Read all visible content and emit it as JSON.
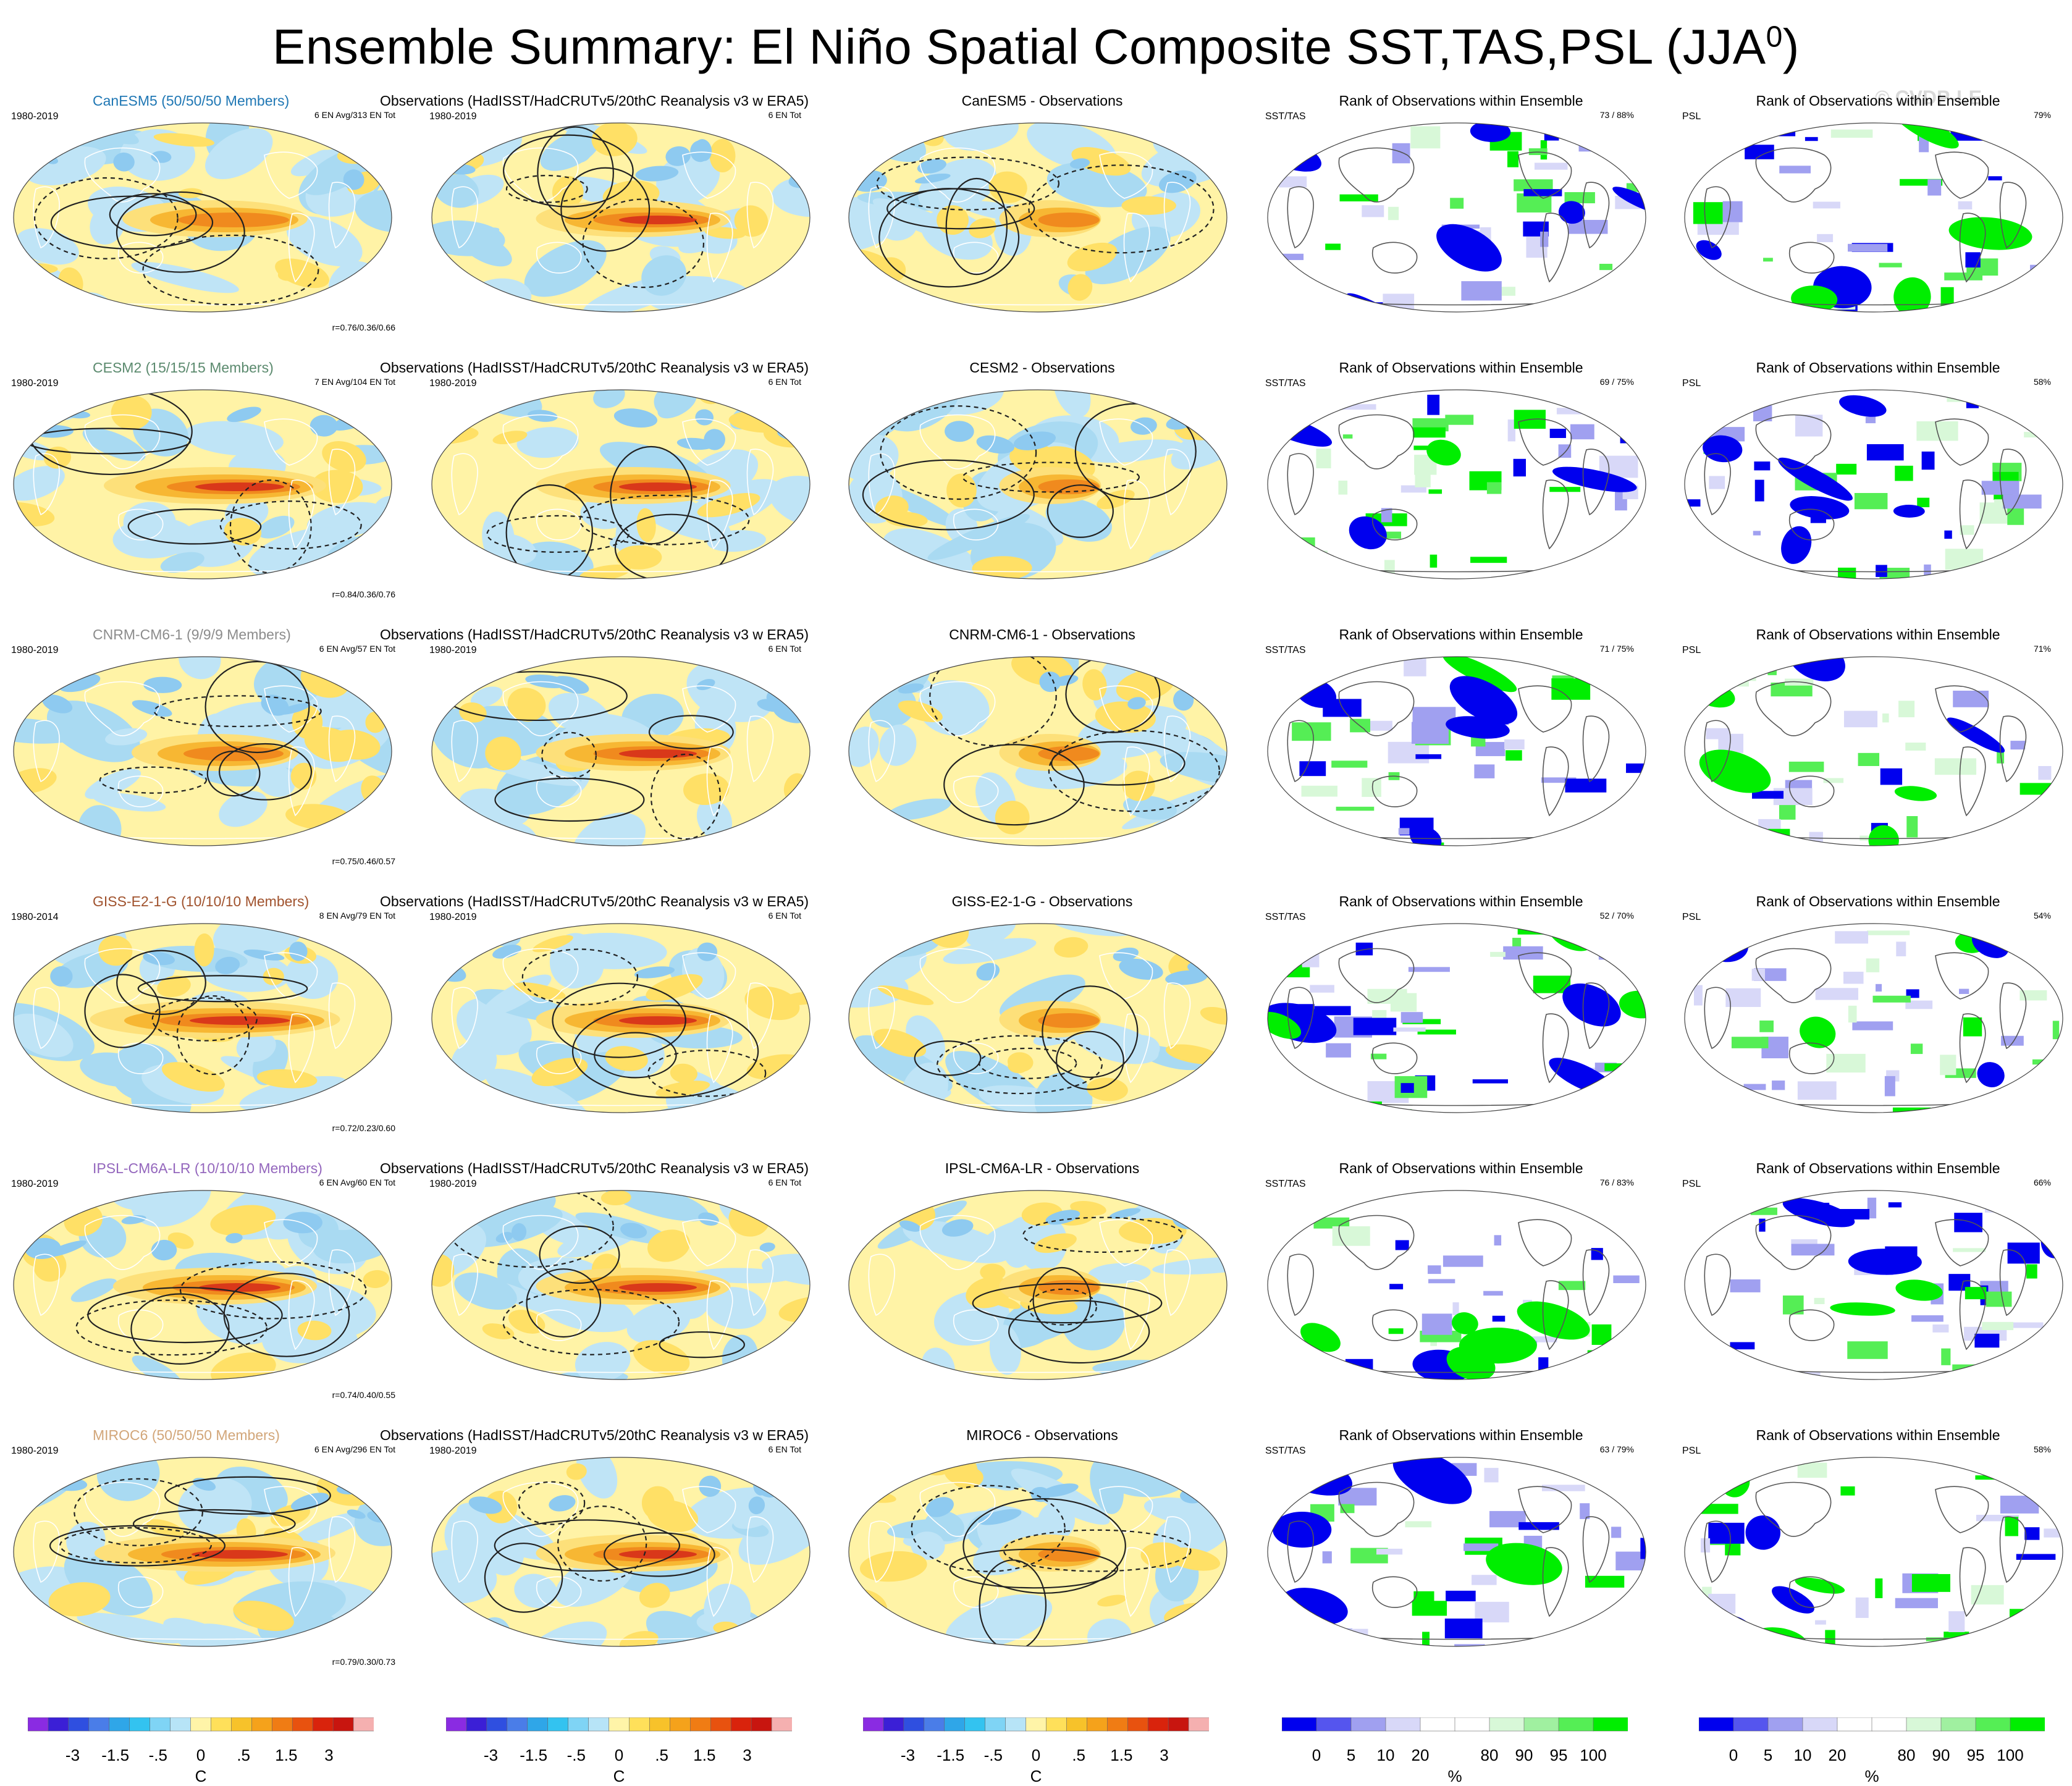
{
  "title": "Ensemble Summary: El Niño Spatial Composite SST,TAS,PSL (JJA",
  "title_sup": "0",
  "title_close": ")",
  "watermark": "© CVDP-LE",
  "obs_title": "Observations (HadISST/HadCRUTv5/20thC Reanalysis v3 w ERA5)",
  "rank_title": "Rank of Observations within Ensemble",
  "rank_left_label": "SST/TAS",
  "psl_label": "PSL",
  "obs_years": "1980-2019",
  "obs_count": "6 EN Tot",
  "rows": [
    {
      "model": "CanESM5",
      "members": "CanESM5 (50/50/50 Members)",
      "color": "#1f77b4",
      "years": "1980-2019",
      "ens": "6 EN Avg/313 EN Tot",
      "corr": "r=0.76/0.36/0.66",
      "diff": "CanESM5 - Observations",
      "rank_sst": "73 /  88%",
      "rank_psl": "79%"
    },
    {
      "model": "CESM2",
      "members": "CESM2 (15/15/15 Members)",
      "color": "#5b8a6e",
      "years": "1980-2019",
      "ens": "7 EN Avg/104 EN Tot",
      "corr": "r=0.84/0.36/0.76",
      "diff": "CESM2 - Observations",
      "rank_sst": "69 /  75%",
      "rank_psl": "58%"
    },
    {
      "model": "CNRM-CM6-1",
      "members": "CNRM-CM6-1 (9/9/9 Members)",
      "color": "#8c8c8c",
      "years": "1980-2019",
      "ens": "6 EN Avg/57 EN Tot",
      "corr": "r=0.75/0.46/0.57",
      "diff": "CNRM-CM6-1 - Observations",
      "rank_sst": "71 /  75%",
      "rank_psl": "71%"
    },
    {
      "model": "GISS-E2-1-G",
      "members": "GISS-E2-1-G (10/10/10 Members)",
      "color": "#a0522d",
      "years": "1980-2014",
      "ens": "8 EN Avg/79 EN Tot",
      "corr": "r=0.72/0.23/0.60",
      "diff": "GISS-E2-1-G - Observations",
      "rank_sst": "52 /  70%",
      "rank_psl": "54%"
    },
    {
      "model": "IPSL-CM6A-LR",
      "members": "IPSL-CM6A-LR (10/10/10 Members)",
      "color": "#9467bd",
      "years": "1980-2019",
      "ens": "6 EN Avg/60 EN Tot",
      "corr": "r=0.74/0.40/0.55",
      "diff": "IPSL-CM6A-LR - Observations",
      "rank_sst": "76 /  83%",
      "rank_psl": "66%"
    },
    {
      "model": "MIROC6",
      "members": "MIROC6 (50/50/50 Members)",
      "color": "#d2a679",
      "years": "1980-2019",
      "ens": "6 EN Avg/296 EN Tot",
      "corr": "r=0.79/0.30/0.73",
      "diff": "MIROC6 - Observations",
      "rank_sst": "63 /  79%",
      "rank_psl": "58%"
    }
  ],
  "temp_colorbar": {
    "colors": [
      "#8a2be2",
      "#3b1fd6",
      "#2f4fe0",
      "#4a7de8",
      "#2fa6e8",
      "#33c3f0",
      "#7fd4f5",
      "#b7e4f7",
      "#fff4a8",
      "#ffe05a",
      "#f7c22a",
      "#f5a21b",
      "#f07c14",
      "#e8520f",
      "#d9230c",
      "#c8150f",
      "#f5b0b0"
    ],
    "labels": [
      "-3",
      "-1.5",
      "-.5",
      "0",
      ".5",
      "1.5",
      "3"
    ],
    "unit": "C"
  },
  "rank_colorbar": {
    "colors": [
      "#0000ee",
      "#5555ee",
      "#a0a0f0",
      "#d8d8f8",
      "#ffffff",
      "#ffffff",
      "#d8f8d8",
      "#a0f0a0",
      "#55ee55",
      "#00ee00"
    ],
    "labels": [
      "0",
      "5",
      "10",
      "20",
      "80",
      "90",
      "95",
      "100"
    ],
    "unit": "%"
  }
}
